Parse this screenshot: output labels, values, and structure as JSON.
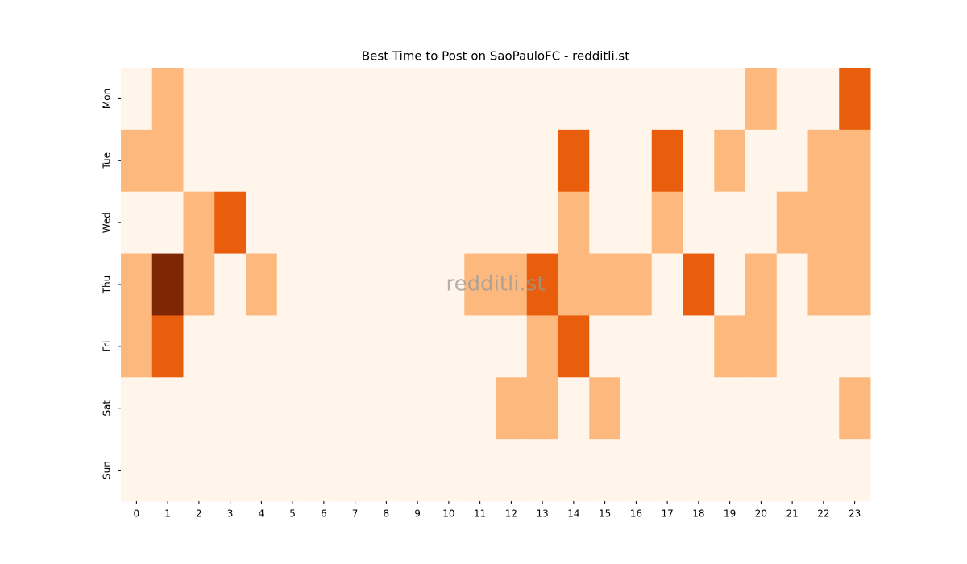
{
  "chart_data": {
    "type": "heatmap",
    "title": "Best Time to Post on SaoPauloFC - redditli.st",
    "watermark": "redditli.st",
    "x": [
      "0",
      "1",
      "2",
      "3",
      "4",
      "5",
      "6",
      "7",
      "8",
      "9",
      "10",
      "11",
      "12",
      "13",
      "14",
      "15",
      "16",
      "17",
      "18",
      "19",
      "20",
      "21",
      "22",
      "23"
    ],
    "y": [
      "Mon",
      "Tue",
      "Wed",
      "Thu",
      "Fri",
      "Sat",
      "Sun"
    ],
    "colors": [
      "#fff5eb",
      "#fdb97d",
      "#e95e0d",
      "#7f2704"
    ],
    "values": [
      [
        0,
        1,
        0,
        0,
        0,
        0,
        0,
        0,
        0,
        0,
        0,
        0,
        0,
        0,
        0,
        0,
        0,
        0,
        0,
        0,
        1,
        0,
        0,
        2
      ],
      [
        1,
        1,
        0,
        0,
        0,
        0,
        0,
        0,
        0,
        0,
        0,
        0,
        0,
        0,
        2,
        0,
        0,
        2,
        0,
        1,
        0,
        0,
        1,
        1
      ],
      [
        0,
        0,
        1,
        2,
        0,
        0,
        0,
        0,
        0,
        0,
        0,
        0,
        0,
        0,
        1,
        0,
        0,
        1,
        0,
        0,
        0,
        1,
        1,
        1
      ],
      [
        1,
        3,
        1,
        0,
        1,
        0,
        0,
        0,
        0,
        0,
        0,
        1,
        1,
        2,
        1,
        1,
        1,
        0,
        2,
        0,
        1,
        0,
        1,
        1
      ],
      [
        1,
        2,
        0,
        0,
        0,
        0,
        0,
        0,
        0,
        0,
        0,
        0,
        0,
        1,
        2,
        0,
        0,
        0,
        0,
        1,
        1,
        0,
        0,
        0
      ],
      [
        0,
        0,
        0,
        0,
        0,
        0,
        0,
        0,
        0,
        0,
        0,
        0,
        1,
        1,
        0,
        1,
        0,
        0,
        0,
        0,
        0,
        0,
        0,
        1
      ],
      [
        0,
        0,
        0,
        0,
        0,
        0,
        0,
        0,
        0,
        0,
        0,
        0,
        0,
        0,
        0,
        0,
        0,
        0,
        0,
        0,
        0,
        0,
        0,
        0
      ]
    ]
  }
}
